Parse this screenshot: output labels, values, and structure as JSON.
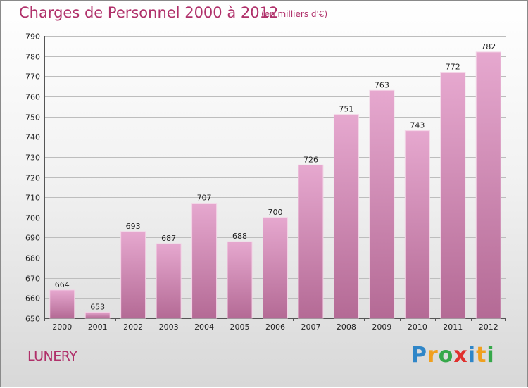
{
  "header": {
    "title": "Charges de Personnel 2000 à 2012",
    "subtitle": "(en milliers d'€)"
  },
  "footer": {
    "commune": "LUNERY",
    "logo": "Proxiti"
  },
  "colors": {
    "title": "#b0306a",
    "bar_top": "#e6a8cf",
    "bar_bottom": "#b46a95",
    "grid": "#bdbdbd"
  },
  "chart_data": {
    "type": "bar",
    "title": "Charges de Personnel 2000 à 2012",
    "subtitle": "(en milliers d'€)",
    "xlabel": "",
    "ylabel": "",
    "categories": [
      "2000",
      "2001",
      "2002",
      "2003",
      "2004",
      "2005",
      "2006",
      "2007",
      "2008",
      "2009",
      "2010",
      "2011",
      "2012"
    ],
    "values": [
      664,
      653,
      693,
      687,
      707,
      688,
      700,
      726,
      751,
      763,
      743,
      772,
      782
    ],
    "ylim": [
      650,
      790
    ],
    "yticks": [
      650,
      660,
      670,
      680,
      690,
      700,
      710,
      720,
      730,
      740,
      750,
      760,
      770,
      780,
      790
    ],
    "grid": true,
    "legend": "none"
  }
}
